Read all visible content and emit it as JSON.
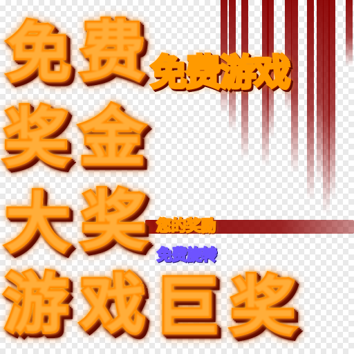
{
  "sheet": {
    "rows": [
      [
        "免",
        "费"
      ],
      [
        "奖",
        "金"
      ],
      [
        "大",
        "奖"
      ],
      [
        "游",
        "戏",
        "巨",
        "奖"
      ]
    ],
    "banner": "免费游戏",
    "labels": {
      "reward": "您的奖励",
      "spin": "免费旋转"
    }
  },
  "colors": {
    "gold_light": "#fffbe2",
    "gold_mid": "#ffb900",
    "gold_dark": "#c23400",
    "red_streak": "#8a0000",
    "purple_label": "#6e53ff"
  }
}
